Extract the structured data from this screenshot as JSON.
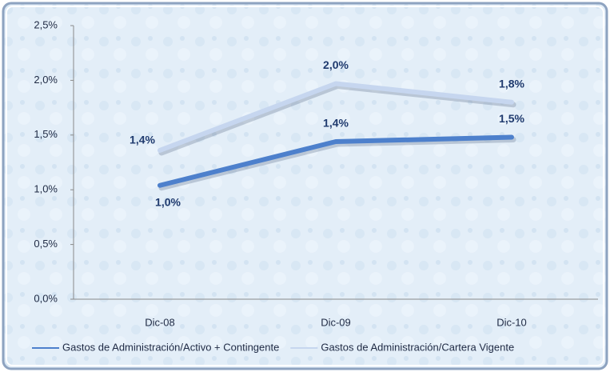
{
  "chart_data": {
    "type": "line",
    "categories": [
      "Dic-08",
      "Dic-09",
      "Dic-10"
    ],
    "series": [
      {
        "name": "Gastos de Administración/Activo + Contingente",
        "color": "#4d80cc",
        "values": [
          1.04,
          1.44,
          1.48
        ],
        "value_labels": [
          "1,0%",
          "1,4%",
          "1,5%"
        ]
      },
      {
        "name": "Gastos de Administración/Cartera Vigente",
        "color": "#c6d6ef",
        "values": [
          1.36,
          1.97,
          1.8
        ],
        "value_labels": [
          "1,4%",
          "2,0%",
          "1,8%"
        ]
      }
    ],
    "ylim": [
      0,
      2.5
    ],
    "yticks": [
      {
        "value": 0,
        "label": "0,0%"
      },
      {
        "value": 0.5,
        "label": "0,5%"
      },
      {
        "value": 1,
        "label": "1,0%"
      },
      {
        "value": 1.5,
        "label": "1,5%"
      },
      {
        "value": 2,
        "label": "2,0%"
      },
      {
        "value": 2.5,
        "label": "2,5%"
      }
    ],
    "legend": "bottom"
  }
}
